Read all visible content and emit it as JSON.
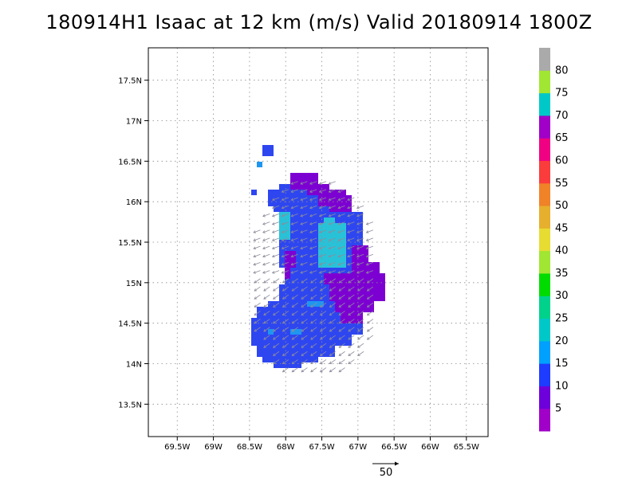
{
  "title": "180914H1 Isaac at 12 km (m/s) Valid 20180914 1800Z",
  "map": {
    "lon_range": [
      69.9,
      65.2
    ],
    "lat_range": [
      13.1,
      17.9
    ],
    "x_ticks": [
      "69.5W",
      "69W",
      "68.5W",
      "68W",
      "67.5W",
      "67W",
      "66.5W",
      "66W",
      "65.5W"
    ],
    "x_tick_values": [
      69.5,
      69,
      68.5,
      68,
      67.5,
      67,
      66.5,
      66,
      65.5
    ],
    "y_ticks": [
      "13.5N",
      "14N",
      "14.5N",
      "15N",
      "15.5N",
      "16N",
      "16.5N",
      "17N",
      "17.5N"
    ],
    "y_tick_values": [
      13.5,
      14,
      14.5,
      15,
      15.5,
      16,
      16.5,
      17,
      17.5
    ],
    "grid": true,
    "grid_color": "#8c8c8c"
  },
  "colorbar": {
    "labels": [
      "5",
      "10",
      "15",
      "20",
      "25",
      "30",
      "35",
      "40",
      "45",
      "50",
      "55",
      "60",
      "65",
      "70",
      "75",
      "80"
    ],
    "colors": [
      "#a000c8",
      "#6e00dc",
      "#1e3cff",
      "#00a0ff",
      "#00c8c8",
      "#00d28c",
      "#00dc00",
      "#a0e632",
      "#e6dc32",
      "#e6af2d",
      "#f08228",
      "#fa3c3c",
      "#f00082",
      "#a000c8",
      "#00c8c8",
      "#a0e632",
      "#aaaaaa"
    ],
    "values": [
      0,
      5,
      10,
      15,
      20,
      25,
      30,
      35,
      40,
      45,
      50,
      55,
      60,
      65,
      70,
      75,
      80,
      85
    ]
  },
  "wind_field": {
    "colors": {
      "5-10": "#7d00d2",
      "10-15": "#2e46f0",
      "15-20": "#1e96f0",
      "20-25": "#28c2d8"
    },
    "arrow_color": "#8c8c9c"
  },
  "vector_scale": {
    "label": "50",
    "value_mps": 50
  }
}
